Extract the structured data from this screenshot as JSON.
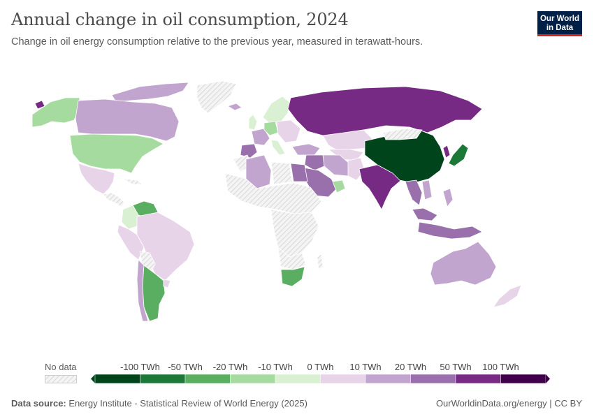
{
  "header": {
    "title": "Annual change in oil consumption, 2024",
    "subtitle": "Change in oil energy consumption relative to the previous year, measured in terawatt-hours."
  },
  "logo": {
    "line1": "Our World",
    "line2": "in Data"
  },
  "legend": {
    "no_data_label": "No data",
    "ticks": [
      "-100 TWh",
      "-50 TWh",
      "-20 TWh",
      "-10 TWh",
      "0 TWh",
      "10 TWh",
      "20 TWh",
      "50 TWh",
      "100 TWh"
    ],
    "bins": [
      {
        "label": "below -100",
        "color": "#00441b"
      },
      {
        "label": "-100 to -50",
        "color": "#1b7837"
      },
      {
        "label": "-50 to -20",
        "color": "#5aae61"
      },
      {
        "label": "-20 to -10",
        "color": "#a6dba0"
      },
      {
        "label": "-10 to 0",
        "color": "#d9f0d3"
      },
      {
        "label": "0 to 10",
        "color": "#e7d4e8"
      },
      {
        "label": "10 to 20",
        "color": "#c2a5cf"
      },
      {
        "label": "20 to 50",
        "color": "#9970ab"
      },
      {
        "label": "50 to 100",
        "color": "#762a83"
      },
      {
        "label": "above 100",
        "color": "#40004b"
      }
    ]
  },
  "colors": {
    "no_data_fill": "#f2f2f2",
    "no_data_hatch": "#cfcfcf",
    "border": "#ffffff"
  },
  "footer": {
    "source_label": "Data source:",
    "source_text": "Energy Institute - Statistical Review of World Energy (2025)",
    "url": "OurWorldinData.org/energy | CC BY"
  }
}
